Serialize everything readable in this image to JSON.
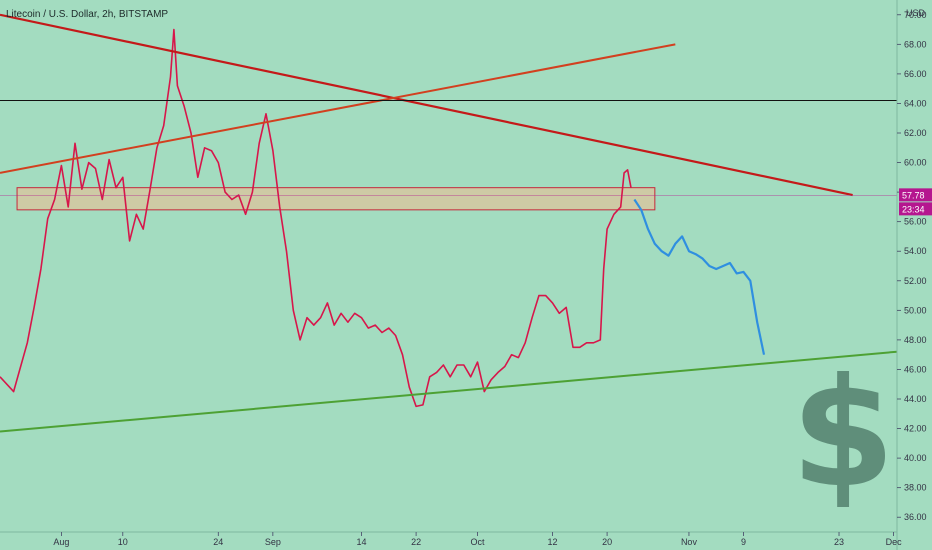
{
  "header": {
    "title": "Litecoin / U.S. Dollar, 2h, BITSTAMP"
  },
  "watermark": {
    "symbol": "$",
    "color": "#5f8e7a"
  },
  "colors": {
    "background": "#a3dcc0",
    "candles": "#d7164a",
    "projection": "#2f8fe0",
    "downtrend": "#c41919",
    "uptrend": "#d2401f",
    "horizontal": "#111111",
    "support": "#4da134",
    "zone_fill": "#d6c7a0",
    "zone_border": "#c6283a",
    "price_badge": "#b5168f"
  },
  "chart_data": {
    "type": "line",
    "title": "Litecoin / U.S. Dollar, 2h, BITSTAMP",
    "ylabel": "USD",
    "price_scale_unit": "USD",
    "ylim": [
      35,
      71
    ],
    "grid": false,
    "y_ticks": [
      "36.00",
      "38.00",
      "40.00",
      "42.00",
      "44.00",
      "46.00",
      "48.00",
      "50.00",
      "52.00",
      "54.00",
      "56.00",
      "58.00",
      "60.00",
      "62.00",
      "64.00",
      "66.00",
      "68.00",
      "70.00"
    ],
    "x_ticks": [
      {
        "label": "Aug",
        "day": 1
      },
      {
        "label": "10",
        "day": 10
      },
      {
        "label": "24",
        "day": 24
      },
      {
        "label": "Sep",
        "day": 32
      },
      {
        "label": "14",
        "day": 45
      },
      {
        "label": "22",
        "day": 53
      },
      {
        "label": "Oct",
        "day": 62
      },
      {
        "label": "12",
        "day": 73
      },
      {
        "label": "20",
        "day": 81
      },
      {
        "label": "Nov",
        "day": 93
      },
      {
        "label": "9",
        "day": 101
      },
      {
        "label": "23",
        "day": 115
      },
      {
        "label": "Dec",
        "day": 123
      }
    ],
    "xlim": [
      -8,
      123.5
    ],
    "current_price": "57.78",
    "countdown": "23:34",
    "series": [
      {
        "kind": "price",
        "points": [
          [
            -8,
            45.5
          ],
          [
            -6,
            44.5
          ],
          [
            -4,
            47.8
          ],
          [
            -3,
            50.2
          ],
          [
            -2,
            52.8
          ],
          [
            -1,
            56.2
          ],
          [
            0,
            57.5
          ],
          [
            1,
            59.8
          ],
          [
            2,
            57.0
          ],
          [
            3,
            61.3
          ],
          [
            4,
            58.2
          ],
          [
            5,
            60.0
          ],
          [
            6,
            59.6
          ],
          [
            7,
            57.5
          ],
          [
            8,
            60.2
          ],
          [
            9,
            58.3
          ],
          [
            10,
            59.0
          ],
          [
            11,
            54.7
          ],
          [
            12,
            56.5
          ],
          [
            13,
            55.5
          ],
          [
            14,
            58.2
          ],
          [
            15,
            61.0
          ],
          [
            16,
            62.5
          ],
          [
            17,
            65.8
          ],
          [
            17.5,
            69.0
          ],
          [
            18,
            65.2
          ],
          [
            19,
            63.8
          ],
          [
            20,
            62.0
          ],
          [
            21,
            59.0
          ],
          [
            22,
            61.0
          ],
          [
            23,
            60.8
          ],
          [
            24,
            60.0
          ],
          [
            25,
            58.0
          ],
          [
            26,
            57.5
          ],
          [
            27,
            57.8
          ],
          [
            28,
            56.5
          ],
          [
            29,
            58.0
          ],
          [
            30,
            61.3
          ],
          [
            31,
            63.3
          ],
          [
            32,
            60.8
          ],
          [
            33,
            57.0
          ],
          [
            34,
            54.0
          ],
          [
            35,
            50.0
          ],
          [
            36,
            48.0
          ],
          [
            37,
            49.5
          ],
          [
            38,
            49.0
          ],
          [
            39,
            49.5
          ],
          [
            40,
            50.5
          ],
          [
            41,
            49.0
          ],
          [
            42,
            49.8
          ],
          [
            43,
            49.2
          ],
          [
            44,
            49.8
          ],
          [
            45,
            49.5
          ],
          [
            46,
            48.8
          ],
          [
            47,
            49.0
          ],
          [
            48,
            48.5
          ],
          [
            49,
            48.8
          ],
          [
            50,
            48.3
          ],
          [
            51,
            47.0
          ],
          [
            52,
            44.8
          ],
          [
            53,
            43.5
          ],
          [
            54,
            43.6
          ],
          [
            55,
            45.5
          ],
          [
            56,
            45.8
          ],
          [
            57,
            46.3
          ],
          [
            58,
            45.5
          ],
          [
            59,
            46.3
          ],
          [
            60,
            46.3
          ],
          [
            61,
            45.5
          ],
          [
            62,
            46.5
          ],
          [
            63,
            44.5
          ],
          [
            64,
            45.3
          ],
          [
            65,
            45.8
          ],
          [
            66,
            46.2
          ],
          [
            67,
            47.0
          ],
          [
            68,
            46.8
          ],
          [
            69,
            47.8
          ],
          [
            70,
            49.5
          ],
          [
            71,
            51.0
          ],
          [
            72,
            51.0
          ],
          [
            73,
            50.5
          ],
          [
            74,
            49.8
          ],
          [
            75,
            50.2
          ],
          [
            76,
            47.5
          ],
          [
            77,
            47.5
          ],
          [
            78,
            47.8
          ],
          [
            79,
            47.8
          ],
          [
            80,
            48.0
          ],
          [
            80.5,
            52.8
          ],
          [
            81,
            55.5
          ],
          [
            82,
            56.5
          ],
          [
            83,
            57.0
          ],
          [
            83.5,
            59.3
          ],
          [
            84,
            59.5
          ],
          [
            84.5,
            58.3
          ]
        ]
      },
      {
        "kind": "projection",
        "points": [
          [
            85,
            57.5
          ],
          [
            86,
            56.8
          ],
          [
            87,
            55.5
          ],
          [
            88,
            54.5
          ],
          [
            89,
            54.0
          ],
          [
            90,
            53.7
          ],
          [
            91,
            54.5
          ],
          [
            92,
            55.0
          ],
          [
            93,
            54.0
          ],
          [
            94,
            53.8
          ],
          [
            95,
            53.5
          ],
          [
            96,
            53.0
          ],
          [
            97,
            52.8
          ],
          [
            98,
            53.0
          ],
          [
            99,
            53.2
          ],
          [
            100,
            52.5
          ],
          [
            101,
            52.6
          ],
          [
            102,
            52.0
          ],
          [
            103,
            49.2
          ],
          [
            104,
            47.0
          ]
        ]
      }
    ],
    "drawings": [
      {
        "type": "trendline",
        "name": "descending-resistance",
        "from": [
          -8,
          70.0
        ],
        "to": [
          117,
          57.8
        ]
      },
      {
        "type": "trendline",
        "name": "ascending-trend",
        "from": [
          -8,
          59.3
        ],
        "to": [
          91,
          68.0
        ]
      },
      {
        "type": "horizontal",
        "name": "horizontal-level",
        "y": 64.2
      },
      {
        "type": "trendline",
        "name": "support-line",
        "from": [
          -8,
          41.8
        ],
        "to": [
          123.5,
          47.2
        ]
      },
      {
        "type": "rectangle",
        "name": "supply-zone",
        "x0": -5.5,
        "x1": 88,
        "y0": 56.8,
        "y1": 58.3
      }
    ]
  }
}
